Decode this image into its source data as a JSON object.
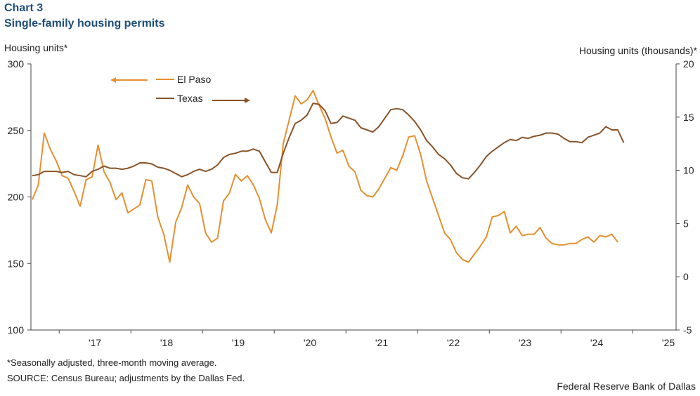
{
  "header": {
    "chart_label": "Chart 3",
    "title": "Single-family housing permits"
  },
  "axes": {
    "left_label": "Housing units*",
    "right_label": "Housing units (thousands)*"
  },
  "footer": {
    "note": "*Seasonally adjusted, three-month moving average.",
    "source": "SOURCE: Census Bureau; adjustments by the Dallas Fed.",
    "credit": "Federal Reserve Bank of Dallas"
  },
  "colors": {
    "el_paso": "#e5902f",
    "texas": "#8a5328",
    "axis": "#444444"
  },
  "chart_data": {
    "type": "line",
    "title": "Single-family housing permits",
    "ylabel": "Housing units*",
    "y2label": "Housing units (thousands)*",
    "ylim": [
      100,
      300
    ],
    "y2lim": [
      -5,
      20
    ],
    "yticks": [
      100,
      150,
      200,
      250,
      300
    ],
    "y2ticks": [
      -5,
      0,
      5,
      10,
      15,
      20
    ],
    "x_start_month": "2016-08",
    "xticks": [
      "'17",
      "'18",
      "'19",
      "'20",
      "'21",
      "'22",
      "'23",
      "'24",
      "'25"
    ],
    "legend": [
      {
        "name": "El Paso",
        "axis": "left"
      },
      {
        "name": "Texas",
        "axis": "right"
      }
    ],
    "series": [
      {
        "name": "El Paso",
        "axis": "left",
        "values": [
          198,
          209,
          248,
          236,
          227,
          216,
          214,
          204,
          193,
          213,
          215,
          239,
          219,
          211,
          198,
          203,
          188,
          191,
          194,
          213,
          212,
          185,
          172,
          151,
          181,
          192,
          209,
          200,
          195,
          173,
          166,
          169,
          197,
          203,
          217,
          212,
          216,
          209,
          199,
          183,
          173,
          194,
          240,
          258,
          276,
          270,
          273,
          280,
          269,
          259,
          245,
          233,
          235,
          223,
          219,
          205,
          201,
          200,
          206,
          214,
          222,
          220,
          231,
          245,
          246,
          232,
          212,
          199,
          186,
          173,
          168,
          158,
          153,
          151,
          157,
          163,
          170,
          185,
          186,
          189,
          173,
          178,
          171,
          172,
          172,
          177,
          169,
          165,
          164,
          164,
          165,
          165,
          168,
          170,
          166,
          171,
          170,
          172,
          166
        ]
      },
      {
        "name": "Texas",
        "axis": "right",
        "values": [
          9.5,
          9.6,
          9.9,
          9.9,
          9.9,
          9.8,
          9.9,
          9.6,
          9.5,
          9.4,
          9.9,
          10.1,
          10.4,
          10.2,
          10.2,
          10.1,
          10.2,
          10.4,
          10.7,
          10.7,
          10.6,
          10.3,
          10.2,
          10.0,
          9.7,
          9.4,
          9.6,
          9.9,
          10.1,
          9.9,
          10.1,
          10.5,
          11.2,
          11.5,
          11.6,
          11.8,
          11.8,
          12.0,
          11.8,
          10.8,
          9.8,
          9.8,
          11.6,
          13.1,
          14.4,
          14.7,
          15.2,
          16.3,
          16.2,
          15.6,
          14.4,
          14.5,
          15.1,
          14.9,
          14.7,
          14.0,
          13.8,
          13.6,
          14.1,
          14.9,
          15.7,
          15.8,
          15.7,
          15.2,
          14.6,
          13.8,
          12.8,
          12.2,
          11.5,
          11.1,
          10.5,
          9.7,
          9.3,
          9.2,
          9.8,
          10.5,
          11.3,
          11.8,
          12.2,
          12.6,
          12.9,
          12.8,
          13.1,
          13.0,
          13.2,
          13.3,
          13.5,
          13.5,
          13.4,
          13.0,
          12.7,
          12.7,
          12.6,
          13.1,
          13.3,
          13.5,
          14.1,
          13.8,
          13.8,
          12.6
        ]
      }
    ],
    "grid": false,
    "legend_placement": "top-left, inside plot"
  }
}
